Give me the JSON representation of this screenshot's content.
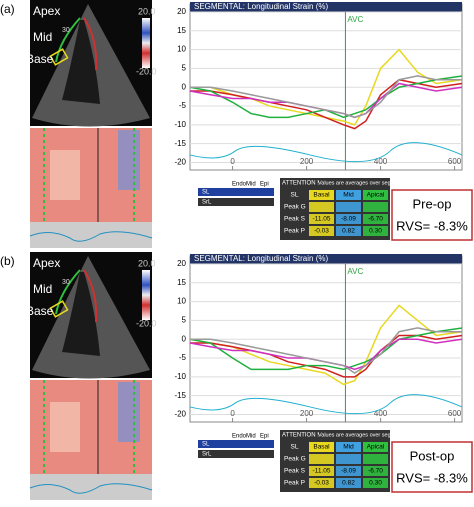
{
  "panels": [
    {
      "label": "(a)",
      "echo_labels": [
        "Apex",
        "Mid",
        "Base"
      ],
      "depth": "30",
      "scale": [
        "20.0",
        "-20.0"
      ],
      "legend": [
        "Endo",
        "Mid",
        "Epi",
        "SL",
        "SrL"
      ],
      "table": {
        "attention": "ATTENTION !",
        "note": "Values are averages over segments !",
        "columns": [
          "SL",
          "Basal",
          "Mid",
          "Apical"
        ],
        "rows": [
          {
            "label": "Peak G"
          },
          {
            "label": "Peak S",
            "values": [
              "-11.05",
              "-8.09",
              "-6.70"
            ]
          },
          {
            "label": "Peak P",
            "values": [
              "-0.03",
              "0.82",
              "0.30"
            ]
          }
        ]
      },
      "annotation": [
        "Pre-op",
        "RVS= -8.3%"
      ]
    },
    {
      "label": "(b)",
      "echo_labels": [
        "Apex",
        "Mid",
        "Base"
      ],
      "depth": "30",
      "scale": [
        "20.0",
        "-20.0"
      ],
      "legend": [
        "Endo",
        "Mid",
        "Epi",
        "SL",
        "SrL"
      ],
      "table": {
        "attention": "ATTENTION !",
        "note": "Values are averages over segments !",
        "columns": [
          "SL",
          "Basal",
          "Mid",
          "Apical"
        ],
        "rows": [
          {
            "label": "Peak G"
          },
          {
            "label": "Peak S",
            "values": [
              "-11.05",
              "-8.09",
              "-6.70"
            ]
          },
          {
            "label": "Peak P",
            "values": [
              "-0.03",
              "0.82",
              "0.30"
            ]
          }
        ]
      },
      "annotation": [
        "Post-op",
        "RVS= -8.3%"
      ]
    }
  ],
  "chart_data": [
    {
      "type": "line",
      "title": "SEGMENTAL: Longitudinal Strain (%)",
      "x": [
        -115,
        -60,
        0,
        50,
        100,
        150,
        200,
        250,
        300,
        330,
        360,
        400,
        450,
        500,
        550,
        620
      ],
      "series": [
        {
          "color": "#e8d820",
          "values": [
            0,
            0,
            -2,
            -3,
            -5,
            -6,
            -7,
            -8,
            -9,
            -10,
            -5,
            5,
            10,
            4,
            1,
            2
          ]
        },
        {
          "color": "#d02020",
          "values": [
            -1,
            -1,
            -2,
            -3,
            -4,
            -5,
            -6,
            -8,
            -10,
            -11,
            -9,
            -2,
            2,
            1,
            0,
            1
          ]
        },
        {
          "color": "#20b040",
          "values": [
            0,
            -1,
            -4,
            -7,
            -8,
            -8,
            -7,
            -6,
            -8,
            -7,
            -6,
            -3,
            0,
            1,
            2,
            3
          ]
        },
        {
          "color": "#d030c0",
          "values": [
            -1,
            -2,
            -3,
            -3,
            -4,
            -4,
            -5,
            -6,
            -7,
            -8,
            -7,
            -3,
            1,
            0,
            -1,
            0
          ]
        },
        {
          "color": "#999999",
          "values": [
            0,
            0,
            -1,
            -2,
            -3,
            -4,
            -5,
            -6,
            -7,
            -8,
            -7,
            -4,
            2,
            3,
            2,
            2
          ]
        }
      ],
      "markers": [
        {
          "x": 305,
          "label": "AVC"
        }
      ],
      "xlim": [
        -115,
        620
      ],
      "ylim": [
        -22,
        20
      ],
      "xticks": [
        0,
        200,
        400,
        600
      ],
      "yticks": [
        -20,
        -15,
        -10,
        -5,
        0,
        5,
        10,
        15,
        20
      ],
      "grid": true
    },
    {
      "type": "line",
      "title": "SEGMENTAL: Longitudinal Strain (%)",
      "x": [
        -115,
        -60,
        0,
        50,
        100,
        150,
        200,
        250,
        300,
        330,
        360,
        400,
        450,
        500,
        550,
        620
      ],
      "series": [
        {
          "color": "#e8d820",
          "values": [
            0,
            -1,
            -2,
            -4,
            -6,
            -7,
            -8,
            -9,
            -12,
            -11,
            -6,
            3,
            9,
            5,
            1,
            2
          ]
        },
        {
          "color": "#d02020",
          "values": [
            -1,
            -1,
            -2,
            -3,
            -4,
            -6,
            -7,
            -8,
            -10,
            -10,
            -8,
            -3,
            1,
            1,
            0,
            1
          ]
        },
        {
          "color": "#20b040",
          "values": [
            0,
            -1,
            -5,
            -8,
            -8,
            -8,
            -7,
            -7,
            -8,
            -7,
            -6,
            -4,
            0,
            1,
            2,
            3
          ]
        },
        {
          "color": "#d030c0",
          "values": [
            -1,
            -2,
            -3,
            -3,
            -4,
            -5,
            -5,
            -6,
            -7,
            -8,
            -7,
            -3,
            0,
            0,
            -1,
            0
          ]
        },
        {
          "color": "#999999",
          "values": [
            0,
            0,
            -1,
            -2,
            -3,
            -4,
            -5,
            -6,
            -7,
            -9,
            -7,
            -4,
            2,
            3,
            2,
            2
          ]
        }
      ],
      "markers": [
        {
          "x": 305,
          "label": "AVC"
        }
      ],
      "xlim": [
        -115,
        620
      ],
      "ylim": [
        -22,
        20
      ],
      "xticks": [
        0,
        200,
        400,
        600
      ],
      "yticks": [
        -20,
        -15,
        -10,
        -5,
        0,
        5,
        10,
        15,
        20
      ],
      "grid": true
    }
  ]
}
